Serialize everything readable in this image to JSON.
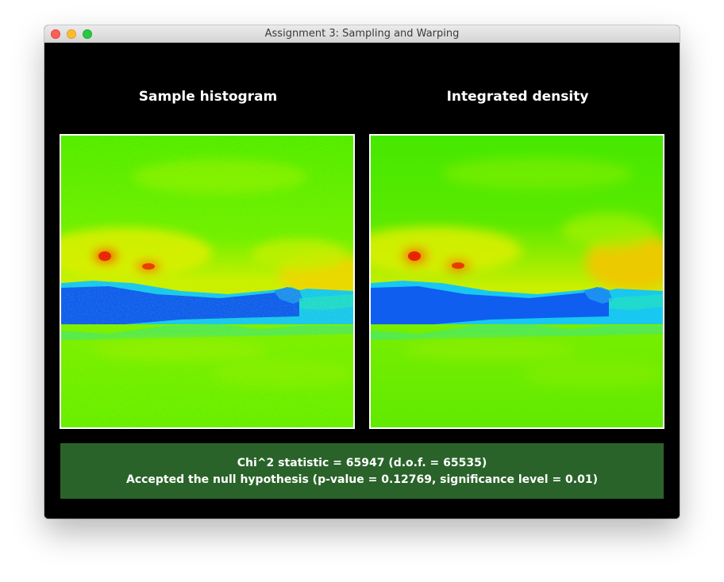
{
  "window": {
    "title": "Assignment 3: Sampling and Warping"
  },
  "panels": {
    "left_title": "Sample histogram",
    "right_title": "Integrated density"
  },
  "result": {
    "line1": "Chi^2 statistic = 65947 (d.o.f. = 65535)",
    "line2": "Accepted the null hypothesis (p-value = 0.12769, significance level = 0.01)"
  },
  "colors": {
    "background": "#000000",
    "result_box": "#2a632a",
    "heatmap_green": "#3df000",
    "heatmap_yellow": "#f0f000",
    "heatmap_blue": "#1060f0",
    "heatmap_cyan": "#00d0f0",
    "heatmap_red": "#e81000"
  }
}
